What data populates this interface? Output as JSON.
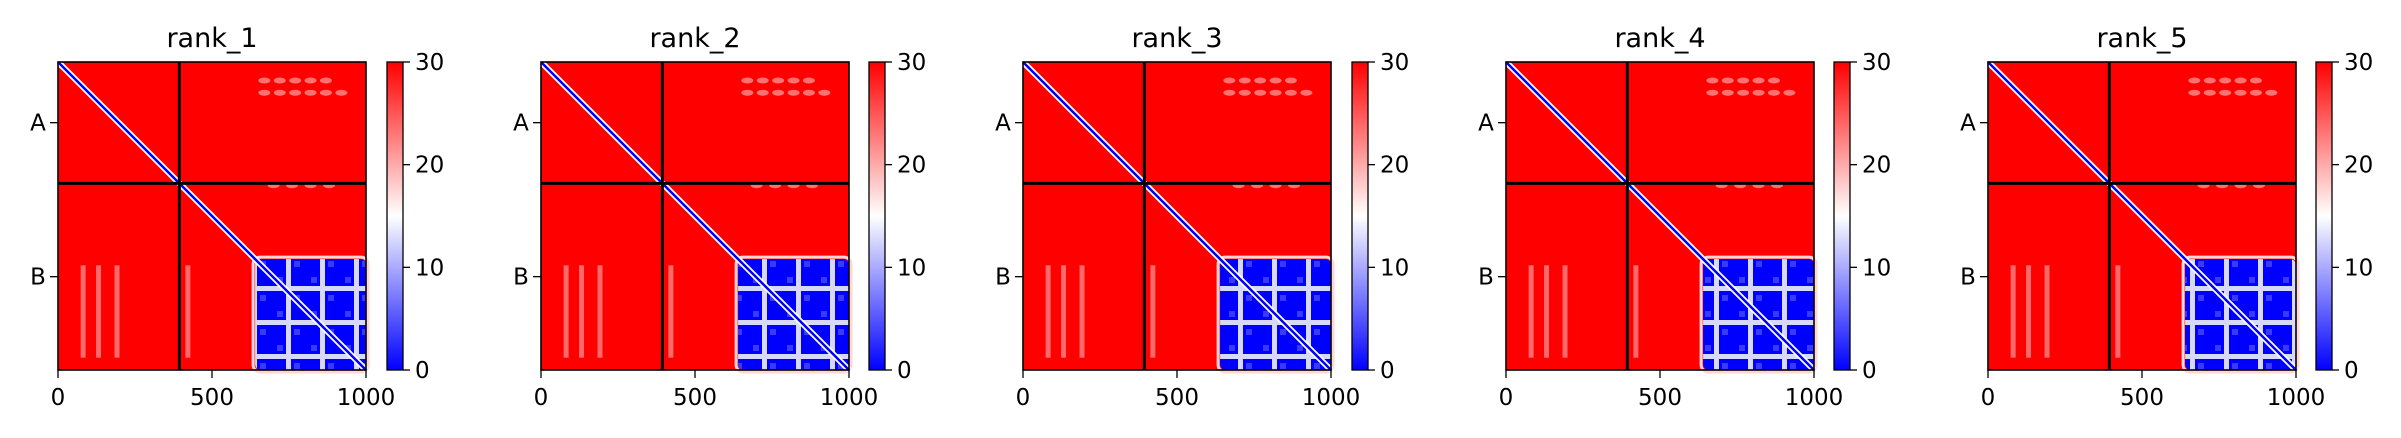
{
  "figure": {
    "colors": {
      "high": "#ff0000",
      "mid": "#ffffff",
      "low": "#0000ff",
      "chain_line": "#000000"
    }
  },
  "chart_data": [
    {
      "type": "heatmap",
      "title": "rank_1",
      "x": [
        0,
        1000
      ],
      "y": [
        0,
        1000
      ],
      "xlim": [
        0,
        1000
      ],
      "ylim": [
        1000,
        0
      ],
      "x_ticks": [
        0,
        500,
        1000
      ],
      "x_tick_labels": [
        "0",
        "500",
        "1000"
      ],
      "chains": [
        {
          "name": "A",
          "start": 0,
          "end": 394
        },
        {
          "name": "B",
          "start": 394,
          "end": 1000
        }
      ],
      "chain_boundary": 394,
      "colorbar": {
        "min": 0,
        "max": 30,
        "ticks": [
          0,
          10,
          20,
          30
        ],
        "tick_labels": [
          "0",
          "10",
          "20",
          "30"
        ],
        "colormap": "bwr"
      },
      "background_value": 30,
      "diagonal_value": 0,
      "low_error_block": {
        "start": 640,
        "end": 1000,
        "value": 5
      },
      "grid": false
    },
    {
      "type": "heatmap",
      "title": "rank_2",
      "x": [
        0,
        1000
      ],
      "y": [
        0,
        1000
      ],
      "xlim": [
        0,
        1000
      ],
      "ylim": [
        1000,
        0
      ],
      "x_ticks": [
        0,
        500,
        1000
      ],
      "x_tick_labels": [
        "0",
        "500",
        "1000"
      ],
      "chains": [
        {
          "name": "A",
          "start": 0,
          "end": 394
        },
        {
          "name": "B",
          "start": 394,
          "end": 1000
        }
      ],
      "chain_boundary": 394,
      "colorbar": {
        "min": 0,
        "max": 30,
        "ticks": [
          0,
          10,
          20,
          30
        ],
        "tick_labels": [
          "0",
          "10",
          "20",
          "30"
        ],
        "colormap": "bwr"
      },
      "background_value": 30,
      "diagonal_value": 0,
      "low_error_block": {
        "start": 640,
        "end": 1000,
        "value": 5
      },
      "grid": false
    },
    {
      "type": "heatmap",
      "title": "rank_3",
      "x": [
        0,
        1000
      ],
      "y": [
        0,
        1000
      ],
      "xlim": [
        0,
        1000
      ],
      "ylim": [
        1000,
        0
      ],
      "x_ticks": [
        0,
        500,
        1000
      ],
      "x_tick_labels": [
        "0",
        "500",
        "1000"
      ],
      "chains": [
        {
          "name": "A",
          "start": 0,
          "end": 394
        },
        {
          "name": "B",
          "start": 394,
          "end": 1000
        }
      ],
      "chain_boundary": 394,
      "colorbar": {
        "min": 0,
        "max": 30,
        "ticks": [
          0,
          10,
          20,
          30
        ],
        "tick_labels": [
          "0",
          "10",
          "20",
          "30"
        ],
        "colormap": "bwr"
      },
      "background_value": 30,
      "diagonal_value": 0,
      "low_error_block": {
        "start": 640,
        "end": 1000,
        "value": 5
      },
      "grid": false
    },
    {
      "type": "heatmap",
      "title": "rank_4",
      "x": [
        0,
        1000
      ],
      "y": [
        0,
        1000
      ],
      "xlim": [
        0,
        1000
      ],
      "ylim": [
        1000,
        0
      ],
      "x_ticks": [
        0,
        500,
        1000
      ],
      "x_tick_labels": [
        "0",
        "500",
        "1000"
      ],
      "chains": [
        {
          "name": "A",
          "start": 0,
          "end": 394
        },
        {
          "name": "B",
          "start": 394,
          "end": 1000
        }
      ],
      "chain_boundary": 394,
      "colorbar": {
        "min": 0,
        "max": 30,
        "ticks": [
          0,
          10,
          20,
          30
        ],
        "tick_labels": [
          "0",
          "10",
          "20",
          "30"
        ],
        "colormap": "bwr"
      },
      "background_value": 30,
      "diagonal_value": 0,
      "low_error_block": {
        "start": 640,
        "end": 1000,
        "value": 5
      },
      "grid": false
    },
    {
      "type": "heatmap",
      "title": "rank_5",
      "x": [
        0,
        1000
      ],
      "y": [
        0,
        1000
      ],
      "xlim": [
        0,
        1000
      ],
      "ylim": [
        1000,
        0
      ],
      "x_ticks": [
        0,
        500,
        1000
      ],
      "x_tick_labels": [
        "0",
        "500",
        "1000"
      ],
      "chains": [
        {
          "name": "A",
          "start": 0,
          "end": 394
        },
        {
          "name": "B",
          "start": 394,
          "end": 1000
        }
      ],
      "chain_boundary": 394,
      "colorbar": {
        "min": 0,
        "max": 30,
        "ticks": [
          0,
          10,
          20,
          30
        ],
        "tick_labels": [
          "0",
          "10",
          "20",
          "30"
        ],
        "colormap": "bwr"
      },
      "background_value": 30,
      "diagonal_value": 0,
      "low_error_block": {
        "start": 640,
        "end": 1000,
        "value": 5
      },
      "grid": false
    }
  ]
}
